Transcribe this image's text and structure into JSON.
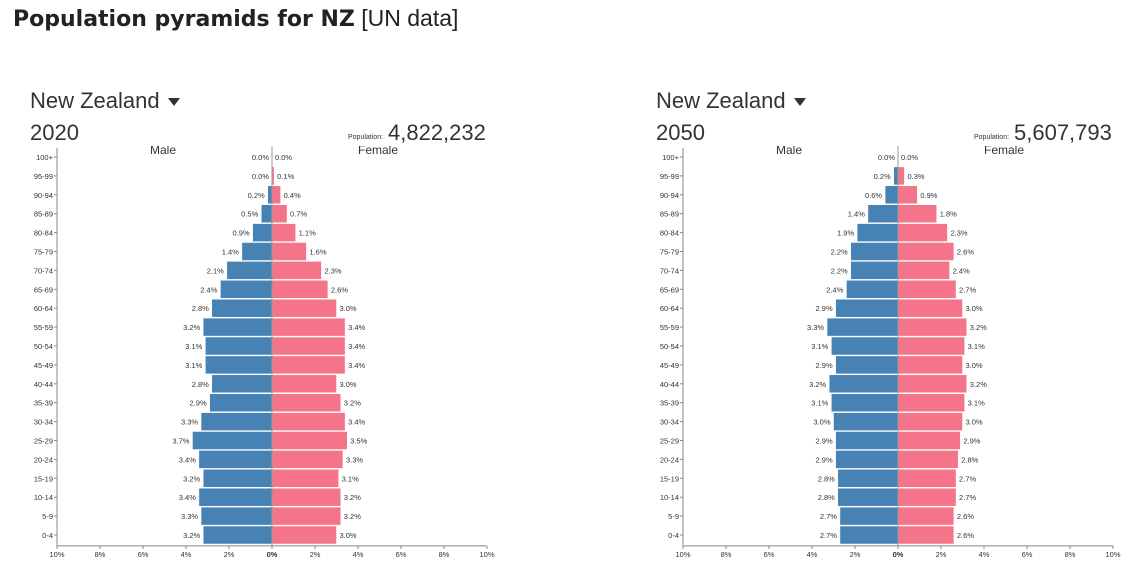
{
  "title": {
    "bold": "Population  pyramids for NZ",
    "normal": "[UN data]"
  },
  "colors": {
    "male": "#4682b4",
    "female": "#f4758a"
  },
  "chart_data": [
    {
      "type": "bar",
      "orientation": "horizontal-pyramid",
      "country_selector": "New Zealand",
      "year": "2020",
      "population_label": "Population:",
      "population": "4,822,232",
      "left_label": "Male",
      "right_label": "Female",
      "categories": [
        "100+",
        "95-99",
        "90-94",
        "85-89",
        "80-84",
        "75-79",
        "70-74",
        "65-69",
        "60-64",
        "55-59",
        "50-54",
        "45-49",
        "40-44",
        "35-39",
        "30-34",
        "25-29",
        "20-24",
        "15-19",
        "10-14",
        "5-9",
        "0-4"
      ],
      "series": [
        {
          "name": "Male",
          "values": [
            0.0,
            0.0,
            0.2,
            0.5,
            0.9,
            1.4,
            2.1,
            2.4,
            2.8,
            3.2,
            3.1,
            3.1,
            2.8,
            2.9,
            3.3,
            3.7,
            3.4,
            3.2,
            3.4,
            3.3,
            3.2
          ]
        },
        {
          "name": "Female",
          "values": [
            0.0,
            0.1,
            0.4,
            0.7,
            1.1,
            1.6,
            2.3,
            2.6,
            3.0,
            3.4,
            3.4,
            3.4,
            3.0,
            3.2,
            3.4,
            3.5,
            3.3,
            3.1,
            3.2,
            3.2,
            3.0
          ]
        }
      ],
      "xlim": [
        -10,
        10
      ],
      "xticks": [
        "10%",
        "8%",
        "6%",
        "4%",
        "2%",
        "0%",
        "2%",
        "4%",
        "6%",
        "8%",
        "10%"
      ]
    },
    {
      "type": "bar",
      "orientation": "horizontal-pyramid",
      "country_selector": "New Zealand",
      "year": "2050",
      "population_label": "Population:",
      "population": "5,607,793",
      "left_label": "Male",
      "right_label": "Female",
      "categories": [
        "100+",
        "95-99",
        "90-94",
        "85-89",
        "80-84",
        "75-79",
        "70-74",
        "65-69",
        "60-64",
        "55-59",
        "50-54",
        "45-49",
        "40-44",
        "35-39",
        "30-34",
        "25-29",
        "20-24",
        "15-19",
        "10-14",
        "5-9",
        "0-4"
      ],
      "series": [
        {
          "name": "Male",
          "values": [
            0.0,
            0.2,
            0.6,
            1.4,
            1.9,
            2.2,
            2.2,
            2.4,
            2.9,
            3.3,
            3.1,
            2.9,
            3.2,
            3.1,
            3.0,
            2.9,
            2.9,
            2.8,
            2.8,
            2.7,
            2.7
          ]
        },
        {
          "name": "Female",
          "values": [
            0.0,
            0.3,
            0.9,
            1.8,
            2.3,
            2.6,
            2.4,
            2.7,
            3.0,
            3.2,
            3.1,
            3.0,
            3.2,
            3.1,
            3.0,
            2.9,
            2.8,
            2.7,
            2.7,
            2.6,
            2.6
          ]
        }
      ],
      "xlim": [
        -10,
        10
      ],
      "xticks": [
        "10%",
        "8%",
        "6%",
        "4%",
        "2%",
        "0%",
        "2%",
        "4%",
        "6%",
        "8%",
        "10%"
      ]
    }
  ]
}
